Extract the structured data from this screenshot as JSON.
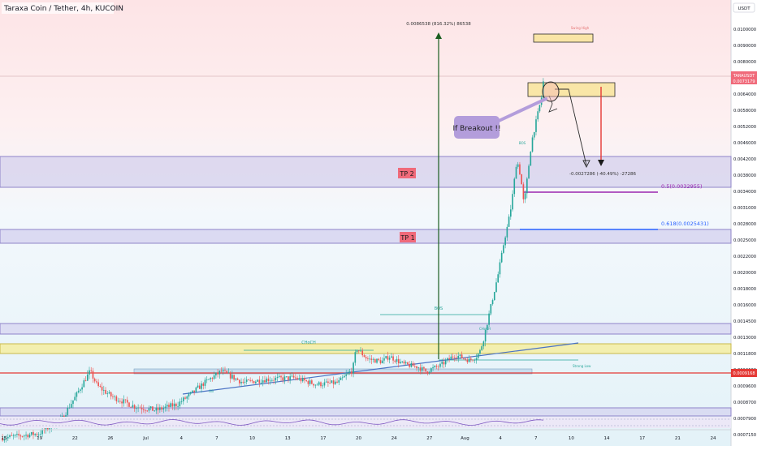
{
  "header": {
    "title": "Taraxa Coin / Tether, 4h, KUCOIN",
    "currency": "USDT"
  },
  "price_tag": {
    "symbol": "TARAUSDT",
    "price": "0.0073179",
    "countdown": "01:09:12"
  },
  "low_tag": "0.0009168",
  "colors": {
    "up": "#26a69a",
    "down": "#ef5350",
    "zone_purple": "#b8aee0",
    "zone_yellow": "#f5e79e",
    "fib_purple": "#9c27b0",
    "fib_blue": "#2962ff",
    "tp_red": "#f06a7a",
    "arrow_red": "#e53935"
  },
  "annotations": {
    "measure_top": "0.0086538 (816.32%) 86538",
    "measure_down": "-0.0027286 (-40.49%) -27286",
    "fib_05": "0.5(0.0032955)",
    "fib_0618": "0.618(0.0025431)",
    "tp2": "TP 2",
    "tp1": "TP 1",
    "breakout_callout": "If Breakout !!",
    "swing_high": "Swing High",
    "strong_low": "Strong Low",
    "bos": "BOS",
    "choch": "CHoCH",
    "ob": "OB"
  },
  "chart_data": {
    "type": "candlestick",
    "title": "Taraxa Coin / Tether, 4h, KUCOIN",
    "timeframe": "4h",
    "y_ticks": [
      "0.0100000",
      "0.0090000",
      "0.0080000",
      "0.0070000",
      "0.0064000",
      "0.0058000",
      "0.0052000",
      "0.0046000",
      "0.0042000",
      "0.0038000",
      "0.0034000",
      "0.0031000",
      "0.0028000",
      "0.0025000",
      "0.0022000",
      "0.0020000",
      "0.0018000",
      "0.0016000",
      "0.0014500",
      "0.0013000",
      "0.0011800",
      "0.0010600",
      "0.0009600",
      "0.0008700",
      "0.0007900",
      "0.0007150"
    ],
    "x_ticks": [
      "15",
      "19",
      "22",
      "26",
      "Jul",
      "4",
      "7",
      "10",
      "13",
      "17",
      "20",
      "24",
      "27",
      "Aug",
      "4",
      "7",
      "10",
      "14",
      "17",
      "21",
      "24"
    ],
    "path": [
      [
        "0.0007000",
        0
      ],
      [
        "0.0007200",
        0.05
      ],
      [
        "0.0007800",
        0.08
      ],
      [
        "0.0009000",
        0.1
      ],
      [
        "0.0010500",
        0.12
      ],
      [
        "0.0009600",
        0.13
      ],
      [
        "0.0009000",
        0.15
      ],
      [
        "0.0008500",
        0.18
      ],
      [
        "0.0008300",
        0.21
      ],
      [
        "0.0008600",
        0.24
      ],
      [
        "0.0009200",
        0.26
      ],
      [
        "0.0009900",
        0.28
      ],
      [
        "0.0010500",
        0.3
      ],
      [
        "0.0009800",
        0.33
      ],
      [
        "0.0010000",
        0.36
      ],
      [
        "0.0010100",
        0.4
      ],
      [
        "0.0009700",
        0.43
      ],
      [
        "0.0009800",
        0.46
      ],
      [
        "0.0010600",
        0.48
      ],
      [
        "0.0012200",
        0.485
      ],
      [
        "0.0011400",
        0.5
      ],
      [
        "0.0011200",
        0.52
      ],
      [
        "0.0011600",
        0.53
      ],
      [
        "0.0011000",
        0.55
      ],
      [
        "0.0010800",
        0.57
      ],
      [
        "0.0010500",
        0.58
      ],
      [
        "0.0010900",
        0.6
      ],
      [
        "0.0011700",
        0.62
      ],
      [
        "0.0011300",
        0.64
      ],
      [
        "0.0011600",
        0.65
      ],
      [
        "0.0012000",
        0.655
      ],
      [
        "0.0013000",
        0.66
      ],
      [
        "0.0014500",
        0.665
      ],
      [
        "0.0016000",
        0.67
      ],
      [
        "0.0018000",
        0.675
      ],
      [
        "0.0020000",
        0.68
      ],
      [
        "0.0022000",
        0.684
      ],
      [
        "0.0025000",
        0.688
      ],
      [
        "0.0028000",
        0.693
      ],
      [
        "0.0031000",
        0.697
      ],
      [
        "0.0034000",
        0.7
      ],
      [
        "0.0042000",
        0.705
      ],
      [
        "0.0038000",
        0.71
      ],
      [
        "0.0031000",
        0.715
      ],
      [
        "0.0038000",
        0.72
      ],
      [
        "0.0046000",
        0.725
      ],
      [
        "0.0052000",
        0.73
      ],
      [
        "0.0058000",
        0.735
      ],
      [
        "0.0064000",
        0.74
      ],
      [
        "0.0080000",
        0.745
      ],
      [
        "0.0090000",
        0.75
      ],
      [
        "0.0086000",
        0.755
      ],
      [
        "0.0090000",
        0.76
      ],
      [
        "0.0080000",
        0.765
      ],
      [
        "0.0073179",
        0.77
      ]
    ]
  }
}
